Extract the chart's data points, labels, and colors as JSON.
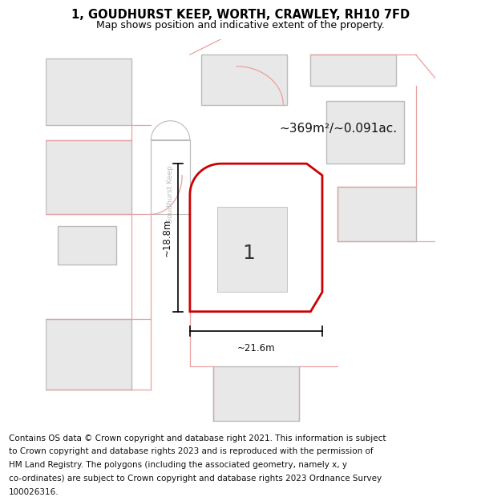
{
  "title_line1": "1, GOUDHURST KEEP, WORTH, CRAWLEY, RH10 7FD",
  "title_line2": "Map shows position and indicative extent of the property.",
  "area_text": "~369m²/~0.091ac.",
  "label_number": "1",
  "dim_height": "~18.8m",
  "dim_width": "~21.6m",
  "street_label": "Goudhurst Keep",
  "footer_lines": [
    "Contains OS data © Crown copyright and database right 2021. This information is subject",
    "to Crown copyright and database rights 2023 and is reproduced with the permission of",
    "HM Land Registry. The polygons (including the associated geometry, namely x, y",
    "co-ordinates) are subject to Crown copyright and database rights 2023 Ordnance Survey",
    "100026316."
  ],
  "bg_color": "#ffffff",
  "building_fill": "#e8e8e8",
  "building_edge": "#bbbbbb",
  "road_fill": "#ffffff",
  "road_edge": "#bbbbbb",
  "pink": "#e8a0a0",
  "red": "#cc0000",
  "dim_color": "#111111",
  "title_fontsize": 10.5,
  "subtitle_fontsize": 9,
  "footer_fontsize": 7.5,
  "street_label_color": "#bbbbbb"
}
